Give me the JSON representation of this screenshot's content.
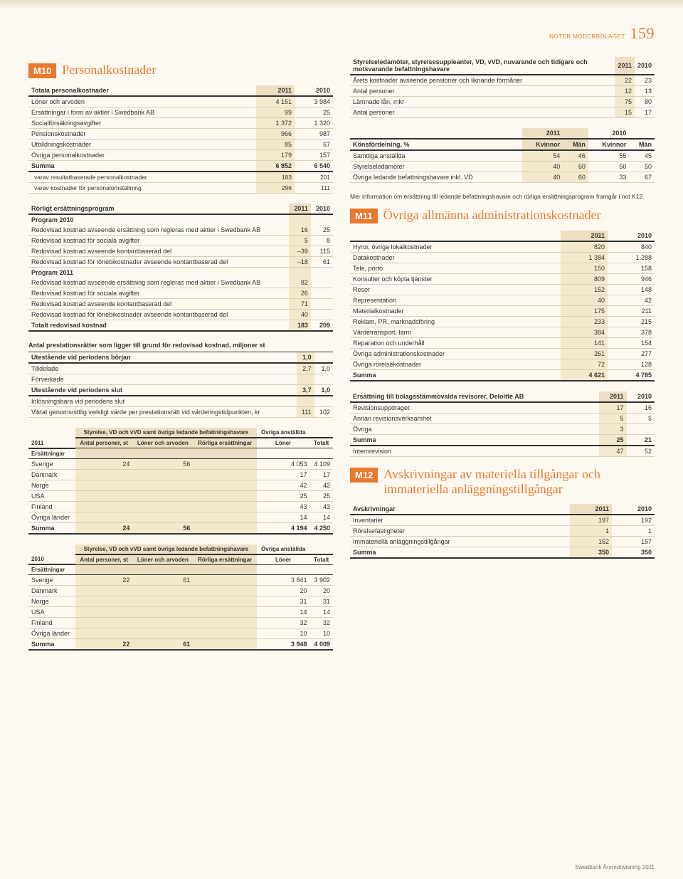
{
  "header": {
    "label": "NOTER MODERBOLAGET",
    "page": "159"
  },
  "m10": {
    "tag": "M10",
    "title": "Personalkostnader"
  },
  "t1": {
    "h": [
      "Totala personalkostnader",
      "2011",
      "2010"
    ],
    "r": [
      [
        "Löner och arvoden",
        "4 151",
        "3 984"
      ],
      [
        "Ersättningar i form av aktier i Swedbank AB",
        "99",
        "25"
      ],
      [
        "Socialförsäkringsavgifter",
        "1 372",
        "1 320"
      ],
      [
        "Pensionskostnader",
        "966",
        "987"
      ],
      [
        "Utbildningskostnader",
        "85",
        "67"
      ],
      [
        "Övriga personalkostnader",
        "179",
        "157"
      ],
      [
        "Summa",
        "6 852",
        "6 540"
      ],
      [
        "varav resultatbaserade personalkostnader",
        "183",
        "201"
      ],
      [
        "varav kostnader för personalomställning",
        "296",
        "111"
      ]
    ]
  },
  "t2": {
    "h": [
      "Rörligt ersättningsprogram",
      "2011",
      "2010"
    ],
    "r": [
      [
        "Program 2010",
        "",
        ""
      ],
      [
        "Redovisad kostnad avseende ersättning som regleras med aktier i Swedbank AB",
        "16",
        "25"
      ],
      [
        "Redovisad kostnad för sociala avgifter",
        "5",
        "8"
      ],
      [
        "Redovisad kostnad avseende kontantbaserad del",
        "–39",
        "115"
      ],
      [
        "Redovisad kostnad för lönebikostnader avseende kontantbaserad del",
        "–18",
        "61"
      ],
      [
        "Program 2011",
        "",
        ""
      ],
      [
        "Redovisad kostnad avseende ersättning som regleras med aktier i Swedbank AB",
        "82",
        ""
      ],
      [
        "Redovisad kostnad för sociala avgifter",
        "26",
        ""
      ],
      [
        "Redovisad kostnad avseende kontantbaserad del",
        "71",
        ""
      ],
      [
        "Redovisad kostnad för lönebikostnader avseende kontantbaserad del",
        "40",
        ""
      ],
      [
        "Totalt redovisad kostnad",
        "183",
        "209"
      ]
    ]
  },
  "cap1": "Antal prestationsrätter som ligger till grund för redovisad kostnad, miljoner st",
  "t3": {
    "r": [
      [
        "Utestående vid periodens början",
        "1,0",
        ""
      ],
      [
        "Tilldelade",
        "2,7",
        "1,0"
      ],
      [
        "Förverkade",
        "",
        ""
      ],
      [
        "Utestående vid periodens slut",
        "3,7",
        "1,0"
      ],
      [
        "Inlösningsbara vid periodens slut",
        "",
        ""
      ],
      [
        "Viktat genomsnittlig verkligt värde per prestationsrätt vid värderingstidpunkten, kr",
        "111",
        "102"
      ]
    ]
  },
  "t4": {
    "year": "2011",
    "g1": "Styrelse, VD och vVD samt övriga ledande befattningshavare",
    "g2": "Övriga anställda",
    "h": [
      "Ersättningar",
      "Antal personer, st",
      "Löner och arvoden",
      "Rörliga ersättningar",
      "Löner",
      "Totalt"
    ],
    "r": [
      [
        "Sverige",
        "24",
        "56",
        "",
        "4 053",
        "4 109"
      ],
      [
        "Danmark",
        "",
        "",
        "",
        "17",
        "17"
      ],
      [
        "Norge",
        "",
        "",
        "",
        "42",
        "42"
      ],
      [
        "USA",
        "",
        "",
        "",
        "25",
        "25"
      ],
      [
        "Finland",
        "",
        "",
        "",
        "43",
        "43"
      ],
      [
        "Övriga länder",
        "",
        "",
        "",
        "14",
        "14"
      ],
      [
        "Summa",
        "24",
        "56",
        "",
        "4 194",
        "4 250"
      ]
    ]
  },
  "t5": {
    "year": "2010",
    "g1": "Styrelse, VD och vVD samt övriga ledande befattningshavare",
    "g2": "Övriga anställda",
    "h": [
      "Ersättningar",
      "Antal personer, st",
      "Löner och arvoden",
      "Rörliga ersättningar",
      "Löner",
      "Totalt"
    ],
    "r": [
      [
        "Sverige",
        "22",
        "61",
        "",
        "3 841",
        "3 902"
      ],
      [
        "Danmark",
        "",
        "",
        "",
        "20",
        "20"
      ],
      [
        "Norge",
        "",
        "",
        "",
        "31",
        "31"
      ],
      [
        "USA",
        "",
        "",
        "",
        "14",
        "14"
      ],
      [
        "Finland",
        "",
        "",
        "",
        "32",
        "32"
      ],
      [
        "Övriga länder",
        "",
        "",
        "",
        "10",
        "10"
      ],
      [
        "Summa",
        "22",
        "61",
        "",
        "3 948",
        "4 009"
      ]
    ]
  },
  "t6": {
    "h": [
      "Styrelseledamöter, styrelsesuppleanter, VD, vVD, nuvarande och tidigare och motsvarande befattningshavare",
      "2011",
      "2010"
    ],
    "r": [
      [
        "Årets kostnader avseende pensioner och liknande förmåner",
        "22",
        "23"
      ],
      [
        "Antal personer",
        "12",
        "13"
      ],
      [
        "Lämnade lån, mkr",
        "75",
        "80"
      ],
      [
        "Antal personer",
        "15",
        "17"
      ]
    ]
  },
  "t7": {
    "h": [
      "",
      "2011",
      "",
      "2010",
      ""
    ],
    "h2": [
      "Könsfördelning, %",
      "Kvinnor",
      "Män",
      "Kvinnor",
      "Män"
    ],
    "r": [
      [
        "Samtliga anställda",
        "54",
        "46",
        "55",
        "45"
      ],
      [
        "Styrelseledamöter",
        "40",
        "60",
        "50",
        "50"
      ],
      [
        "Övriga ledande befattningshavare inkl. VD",
        "40",
        "60",
        "33",
        "67"
      ]
    ]
  },
  "note1": "Mer information om ersättning till ledande befattningshavare och rörliga ersättningsprogram framgår i not K12.",
  "m11": {
    "tag": "M11",
    "title": "Övriga allmänna administrationskostnader"
  },
  "t8": {
    "h": [
      "",
      "2011",
      "2010"
    ],
    "r": [
      [
        "Hyror, övriga lokalkostnader",
        "820",
        "840"
      ],
      [
        "Datakostnader",
        "1 384",
        "1 288"
      ],
      [
        "Tele, porto",
        "150",
        "158"
      ],
      [
        "Konsulter och köpta tjänster",
        "809",
        "946"
      ],
      [
        "Resor",
        "152",
        "148"
      ],
      [
        "Representation",
        "40",
        "42"
      ],
      [
        "Materialkostnader",
        "175",
        "211"
      ],
      [
        "Reklam, PR, marknadsföring",
        "233",
        "215"
      ],
      [
        "Värdetransport, larm",
        "384",
        "378"
      ],
      [
        "Reparation och underhåll",
        "141",
        "154"
      ],
      [
        "Övriga administrationskostnader",
        "261",
        "277"
      ],
      [
        "Övriga rörelsekostnader",
        "72",
        "128"
      ],
      [
        "Summa",
        "4 621",
        "4 785"
      ]
    ]
  },
  "t9": {
    "h": [
      "Ersättning till bolagsstämmovalda revisorer, Deloitte AB",
      "2011",
      "2010"
    ],
    "r": [
      [
        "Revisionsuppdraget",
        "17",
        "16"
      ],
      [
        "Annan revisionsverksamhet",
        "5",
        "5"
      ],
      [
        "Övriga",
        "3",
        ""
      ],
      [
        "Summa",
        "25",
        "21"
      ],
      [
        "Internrevision",
        "47",
        "52"
      ]
    ]
  },
  "m12": {
    "tag": "M12",
    "title": "Avskrivningar av materiella tillgångar och immateriella anläggningstillgångar"
  },
  "t10": {
    "h": [
      "Avskrivningar",
      "2011",
      "2010"
    ],
    "r": [
      [
        "Inventarier",
        "197",
        "192"
      ],
      [
        "Rörelsefastigheter",
        "1",
        "1"
      ],
      [
        "Immateriella anläggningstillgångar",
        "152",
        "157"
      ],
      [
        "Summa",
        "350",
        "350"
      ]
    ]
  },
  "footer": "Swedbank Årsredovisning 2011"
}
